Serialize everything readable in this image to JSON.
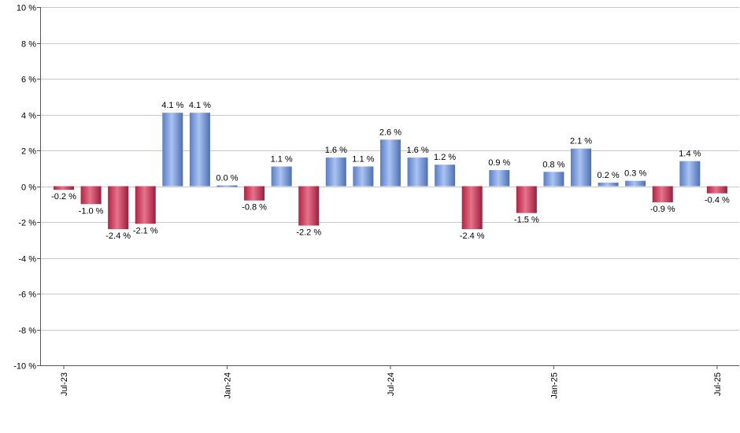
{
  "chart_data": {
    "type": "bar",
    "title": "",
    "xlabel": "",
    "ylabel": "",
    "ylim": [
      -10,
      10
    ],
    "grid": true,
    "y_ticks": [
      {
        "value": 10,
        "label": "10 %"
      },
      {
        "value": 8,
        "label": "8 %"
      },
      {
        "value": 6,
        "label": "6 %"
      },
      {
        "value": 4,
        "label": "4 %"
      },
      {
        "value": 2,
        "label": "2 %"
      },
      {
        "value": 0,
        "label": "0 %"
      },
      {
        "value": -2,
        "label": "-2 %"
      },
      {
        "value": -4,
        "label": "-4 %"
      },
      {
        "value": -6,
        "label": "-6 %"
      },
      {
        "value": -8,
        "label": "-8 %"
      },
      {
        "value": -10,
        "label": "-10 %"
      }
    ],
    "x_ticks": [
      {
        "index": 0,
        "label": "Jul-23"
      },
      {
        "index": 6,
        "label": "Jan-24"
      },
      {
        "index": 12,
        "label": "Jul-24"
      },
      {
        "index": 18,
        "label": "Jan-25"
      },
      {
        "index": 24,
        "label": "Jul-25"
      }
    ],
    "values": [
      -0.2,
      -1.0,
      -2.4,
      -2.1,
      4.1,
      4.1,
      0.0,
      -0.8,
      1.1,
      -2.2,
      1.6,
      1.1,
      2.6,
      1.6,
      1.2,
      -2.4,
      0.9,
      -1.5,
      0.8,
      2.1,
      0.2,
      0.3,
      -0.9,
      1.4,
      -0.4
    ],
    "data_labels": [
      "-0.2 %",
      "-1.0 %",
      "-2.4 %",
      "-2.1 %",
      "4.1 %",
      "4.1 %",
      "0.0 %",
      "-0.8 %",
      "1.1 %",
      "-2.2 %",
      "1.6 %",
      "1.1 %",
      "2.6 %",
      "1.6 %",
      "1.2 %",
      "-2.4 %",
      "0.9 %",
      "-1.5 %",
      "0.8 %",
      "2.1 %",
      "0.2 %",
      "0.3 %",
      "-0.9 %",
      "1.4 %",
      "-0.4 %"
    ],
    "colors": {
      "positive": "#6f95db",
      "negative": "#c9304f"
    }
  }
}
